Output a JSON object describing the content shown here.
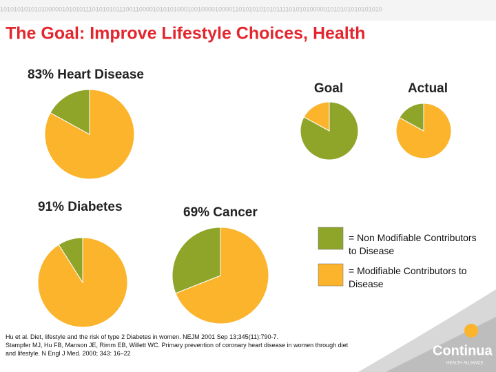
{
  "header": {
    "binary": "1010101010101000001010101110101010111001100001010101000100100001000011010101010101111010101000001010101010101010",
    "title": "The Goal: Improve Lifestyle Choices, Health"
  },
  "chart_data": [
    {
      "type": "pie",
      "title": "83% Heart Disease",
      "values": [
        83,
        17
      ],
      "colors": [
        "#fbb42c",
        "#8ea52a"
      ]
    },
    {
      "type": "pie",
      "title": "Goal",
      "values": [
        83,
        17
      ],
      "colors": [
        "#8ea52a",
        "#fbb42c"
      ]
    },
    {
      "type": "pie",
      "title": "Actual",
      "values": [
        83,
        17
      ],
      "colors": [
        "#fbb42c",
        "#8ea52a"
      ]
    },
    {
      "type": "pie",
      "title": "91% Diabetes",
      "values": [
        91,
        9
      ],
      "colors": [
        "#fbb42c",
        "#8ea52a"
      ]
    },
    {
      "type": "pie",
      "title": "69% Cancer",
      "values": [
        69,
        31
      ],
      "colors": [
        "#fbb42c",
        "#8ea52a"
      ]
    }
  ],
  "legend": [
    {
      "label": "= Non Modifiable Contributors to Disease",
      "color": "#8ea52a"
    },
    {
      "label": "= Modifiable Contributors to Disease",
      "color": "#fbb42c"
    }
  ],
  "citation": [
    "Hu et al. Diet, lifestyle and the risk of type 2 Diabetes in women. NEJM 2001 Sep 13;345(11):790-7.",
    "Stampfer MJ, Hu FB, Manson JE, Rimm EB, Willett WC. Primary prevention of coronary heart disease in women through diet and lifestyle. N Engl J Med. 2000; 343: 16–22"
  ],
  "logo": {
    "name": "Continua",
    "tagline": "HEALTH ALLIANCE"
  }
}
